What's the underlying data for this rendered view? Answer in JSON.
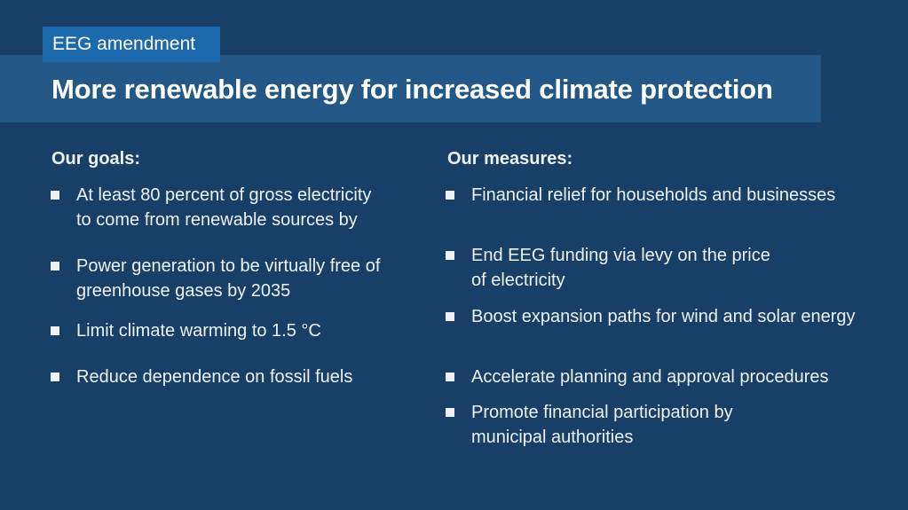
{
  "header": {
    "tag": "EEG amendment",
    "title": "More renewable energy for increased climate protection"
  },
  "goals": {
    "heading": "Our goals:",
    "items": [
      {
        "lines": [
          "At least 80 percent of gross electricity",
          "to come from renewable sources by"
        ]
      },
      {
        "lines": [
          "Power generation to be virtually free of",
          "greenhouse gases by 2035"
        ]
      },
      {
        "lines": [
          "Limit climate warming to 1.5 °C"
        ]
      },
      {
        "lines": [
          "Reduce dependence on fossil fuels"
        ]
      }
    ]
  },
  "measures": {
    "heading": "Our measures:",
    "items": [
      {
        "lines": [
          "Financial relief for households and businesses"
        ]
      },
      {
        "lines": [
          "End EEG funding via levy on the price",
          "of electricity"
        ]
      },
      {
        "lines": [
          "Boost expansion paths for wind and solar energy"
        ]
      },
      {
        "lines": [
          "Accelerate planning and approval procedures"
        ]
      },
      {
        "lines": [
          "Promote financial participation by",
          "municipal authorities"
        ]
      }
    ]
  }
}
